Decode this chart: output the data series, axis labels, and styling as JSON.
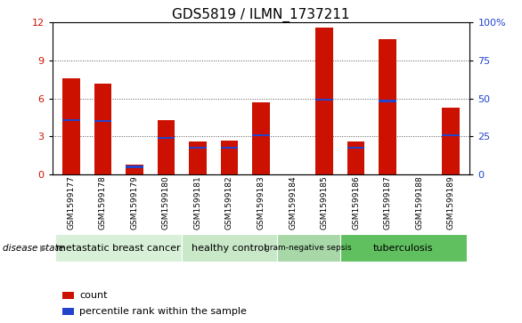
{
  "title": "GDS5819 / ILMN_1737211",
  "samples": [
    "GSM1599177",
    "GSM1599178",
    "GSM1599179",
    "GSM1599180",
    "GSM1599181",
    "GSM1599182",
    "GSM1599183",
    "GSM1599184",
    "GSM1599185",
    "GSM1599186",
    "GSM1599187",
    "GSM1599188",
    "GSM1599189"
  ],
  "count_values": [
    7.6,
    7.2,
    0.8,
    4.3,
    2.6,
    2.7,
    5.7,
    0.0,
    11.6,
    2.6,
    10.7,
    0.0,
    5.3
  ],
  "percentile_values": [
    4.3,
    4.2,
    0.6,
    2.9,
    2.1,
    2.1,
    3.1,
    0.0,
    5.9,
    2.1,
    5.8,
    0.0,
    3.1
  ],
  "ylim_left": [
    0,
    12
  ],
  "ylim_right": [
    0,
    100
  ],
  "yticks_left": [
    0,
    3,
    6,
    9,
    12
  ],
  "yticks_right": [
    0,
    25,
    50,
    75,
    100
  ],
  "ytick_labels_right": [
    "0",
    "25",
    "50",
    "75",
    "100%"
  ],
  "disease_groups": [
    {
      "label": "metastatic breast cancer",
      "start": 0,
      "end": 4,
      "color": "#d8f0d8"
    },
    {
      "label": "healthy control",
      "start": 4,
      "end": 7,
      "color": "#c8e8c8"
    },
    {
      "label": "gram-negative sepsis",
      "start": 7,
      "end": 9,
      "color": "#a8d8a8"
    },
    {
      "label": "tuberculosis",
      "start": 9,
      "end": 13,
      "color": "#60c060"
    }
  ],
  "bar_color": "#cc1100",
  "percentile_color": "#2244cc",
  "bar_width": 0.55,
  "grid_color": "#555555",
  "tick_label_color_left": "#cc1100",
  "tick_label_color_right": "#2244cc",
  "title_fontsize": 11,
  "legend_count_label": "count",
  "legend_percentile_label": "percentile rank within the sample",
  "disease_state_label": "disease state"
}
